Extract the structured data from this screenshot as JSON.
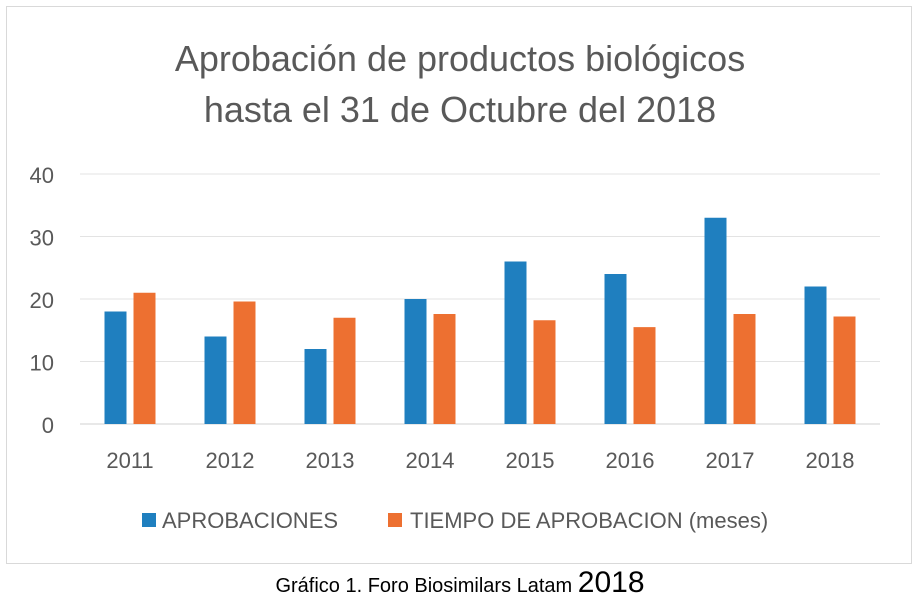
{
  "chart_data": {
    "type": "bar",
    "title_lines": [
      "Aprobación de productos biológicos",
      "hasta el 31 de Octubre del 2018"
    ],
    "categories": [
      "2011",
      "2012",
      "2013",
      "2014",
      "2015",
      "2016",
      "2017",
      "2018"
    ],
    "series": [
      {
        "name": "APROBACIONES",
        "color": "#1f7fbf",
        "values": [
          18,
          14,
          12,
          20,
          26,
          24,
          33,
          22
        ]
      },
      {
        "name": "TIEMPO DE APROBACION (meses)",
        "color": "#ed7031",
        "values": [
          21,
          19.6,
          17,
          17.6,
          16.6,
          15.5,
          17.6,
          17.2
        ]
      }
    ],
    "yticks": [
      0,
      10,
      20,
      30,
      40
    ],
    "ylim": [
      0,
      40
    ],
    "grid": true,
    "legend_position": "bottom",
    "xlabel": "",
    "ylabel": ""
  },
  "caption": {
    "text": "Gráfico 1. Foro Biosimilars Latam ",
    "year": "2018"
  }
}
